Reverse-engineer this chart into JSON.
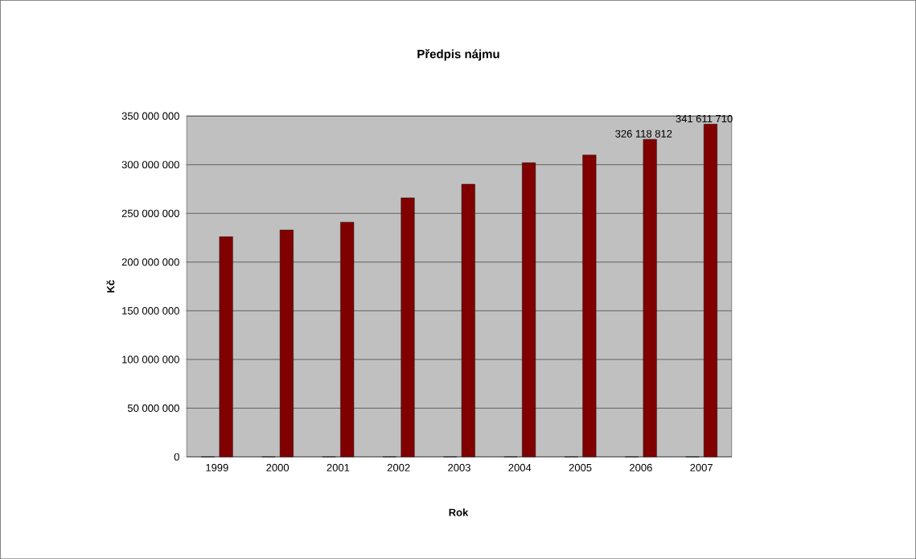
{
  "chart_data": {
    "type": "bar",
    "title": "Předpis nájmu",
    "xlabel": "Rok",
    "ylabel": "Kč",
    "categories": [
      "1999",
      "2000",
      "2001",
      "2002",
      "2003",
      "2004",
      "2005",
      "2006",
      "2007"
    ],
    "series": [
      {
        "color": "#9999ff",
        "values": [
          0,
          0,
          0,
          0,
          0,
          0,
          0,
          0,
          0
        ]
      },
      {
        "color": "#800000",
        "values": [
          226000000,
          233000000,
          241000000,
          266000000,
          280000000,
          302000000,
          310000000,
          326118812,
          341611710
        ],
        "value_labels": [
          null,
          null,
          null,
          null,
          null,
          null,
          null,
          "326 118 812",
          "341 611 710"
        ]
      }
    ],
    "ylim": [
      0,
      350000000
    ],
    "yticks": [
      {
        "value": 0,
        "label": "0"
      },
      {
        "value": 50000000,
        "label": "50 000 000"
      },
      {
        "value": 100000000,
        "label": "100 000 000"
      },
      {
        "value": 150000000,
        "label": "150 000 000"
      },
      {
        "value": 200000000,
        "label": "200 000 000"
      },
      {
        "value": 250000000,
        "label": "250 000 000"
      },
      {
        "value": 300000000,
        "label": "300 000 000"
      },
      {
        "value": 350000000,
        "label": "350 000 000"
      }
    ],
    "grid": "y"
  }
}
